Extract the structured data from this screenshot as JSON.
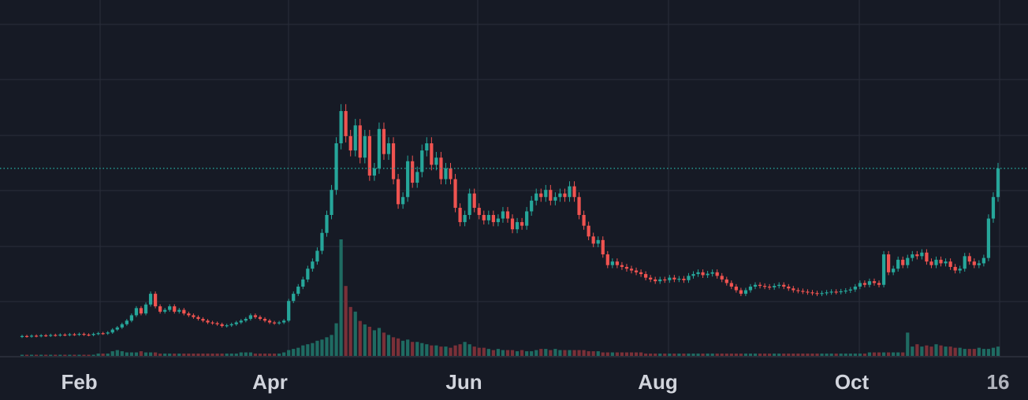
{
  "chart_data": {
    "type": "candlestick",
    "x_axis": {
      "type": "date",
      "tick_labels": [
        {
          "label": "Feb",
          "date": "2024-02-01",
          "emphasis": "month"
        },
        {
          "label": "Apr",
          "date": "2024-04-01",
          "emphasis": "month"
        },
        {
          "label": "Jun",
          "date": "2024-06-01",
          "emphasis": "month"
        },
        {
          "label": "Aug",
          "date": "2024-08-01",
          "emphasis": "month"
        },
        {
          "label": "Oct",
          "date": "2024-10-01",
          "emphasis": "month"
        },
        {
          "label": "16",
          "date": "2024-11-16",
          "emphasis": "day"
        }
      ]
    },
    "y_axis": {
      "visible": false,
      "range": [
        0,
        10
      ]
    },
    "current_price_line": {
      "value": 5.3,
      "style": "dotted"
    },
    "grid": true,
    "volume_panel": true,
    "price_candles": [
      [
        0.6,
        0.62
      ],
      [
        0.62,
        0.61
      ],
      [
        0.61,
        0.63
      ],
      [
        0.63,
        0.62
      ],
      [
        0.62,
        0.64
      ],
      [
        0.64,
        0.63
      ],
      [
        0.63,
        0.65
      ],
      [
        0.65,
        0.64
      ],
      [
        0.64,
        0.66
      ],
      [
        0.66,
        0.65
      ],
      [
        0.65,
        0.67
      ],
      [
        0.67,
        0.66
      ],
      [
        0.66,
        0.68
      ],
      [
        0.68,
        0.66
      ],
      [
        0.66,
        0.65
      ],
      [
        0.65,
        0.68
      ],
      [
        0.68,
        0.7
      ],
      [
        0.7,
        0.69
      ],
      [
        0.69,
        0.72
      ],
      [
        0.72,
        0.8
      ],
      [
        0.8,
        0.86
      ],
      [
        0.86,
        0.95
      ],
      [
        0.95,
        1.05
      ],
      [
        1.05,
        1.2
      ],
      [
        1.2,
        1.4
      ],
      [
        1.4,
        1.25
      ],
      [
        1.25,
        1.5
      ],
      [
        1.5,
        1.8
      ],
      [
        1.8,
        1.45
      ],
      [
        1.45,
        1.3
      ],
      [
        1.3,
        1.35
      ],
      [
        1.35,
        1.45
      ],
      [
        1.45,
        1.3
      ],
      [
        1.3,
        1.35
      ],
      [
        1.35,
        1.25
      ],
      [
        1.25,
        1.2
      ],
      [
        1.2,
        1.15
      ],
      [
        1.15,
        1.1
      ],
      [
        1.1,
        1.05
      ],
      [
        1.05,
        1.0
      ],
      [
        1.0,
        0.98
      ],
      [
        0.98,
        0.95
      ],
      [
        0.95,
        0.9
      ],
      [
        0.9,
        0.92
      ],
      [
        0.92,
        0.95
      ],
      [
        0.95,
        1.0
      ],
      [
        1.0,
        1.05
      ],
      [
        1.05,
        1.1
      ],
      [
        1.1,
        1.2
      ],
      [
        1.2,
        1.15
      ],
      [
        1.15,
        1.1
      ],
      [
        1.1,
        1.05
      ],
      [
        1.05,
        1.0
      ],
      [
        1.0,
        0.98
      ],
      [
        0.98,
        1.0
      ],
      [
        1.0,
        1.05
      ],
      [
        1.05,
        1.6
      ],
      [
        1.6,
        1.8
      ],
      [
        1.8,
        2.0
      ],
      [
        2.0,
        2.2
      ],
      [
        2.2,
        2.5
      ],
      [
        2.5,
        2.7
      ],
      [
        2.7,
        3.0
      ],
      [
        3.0,
        3.5
      ],
      [
        3.5,
        4.0
      ],
      [
        4.0,
        4.7
      ],
      [
        4.7,
        6.0
      ],
      [
        6.0,
        6.9
      ],
      [
        6.9,
        6.2
      ],
      [
        6.2,
        5.8
      ],
      [
        5.8,
        6.5
      ],
      [
        6.5,
        5.6
      ],
      [
        5.6,
        6.2
      ],
      [
        6.2,
        5.1
      ],
      [
        5.1,
        5.3
      ],
      [
        5.3,
        6.4
      ],
      [
        6.4,
        5.7
      ],
      [
        5.7,
        6.0
      ],
      [
        6.0,
        5.0
      ],
      [
        5.0,
        4.3
      ],
      [
        4.3,
        4.5
      ],
      [
        4.5,
        5.5
      ],
      [
        5.5,
        4.9
      ],
      [
        4.9,
        5.2
      ],
      [
        5.2,
        5.8
      ],
      [
        5.8,
        6.0
      ],
      [
        6.0,
        5.4
      ],
      [
        5.4,
        5.6
      ],
      [
        5.6,
        5.0
      ],
      [
        5.0,
        5.3
      ],
      [
        5.3,
        5.0
      ],
      [
        5.0,
        4.2
      ],
      [
        4.2,
        3.8
      ],
      [
        3.8,
        4.0
      ],
      [
        4.0,
        4.6
      ],
      [
        4.6,
        4.2
      ],
      [
        4.2,
        4.0
      ],
      [
        4.0,
        3.85
      ],
      [
        3.85,
        4.0
      ],
      [
        4.0,
        3.8
      ],
      [
        3.8,
        3.9
      ],
      [
        3.9,
        4.1
      ],
      [
        4.1,
        3.9
      ],
      [
        3.9,
        3.6
      ],
      [
        3.6,
        3.8
      ],
      [
        3.8,
        3.7
      ],
      [
        3.7,
        4.1
      ],
      [
        4.1,
        4.4
      ],
      [
        4.4,
        4.6
      ],
      [
        4.6,
        4.5
      ],
      [
        4.5,
        4.7
      ],
      [
        4.7,
        4.4
      ],
      [
        4.4,
        4.5
      ],
      [
        4.5,
        4.6
      ],
      [
        4.6,
        4.5
      ],
      [
        4.5,
        4.8
      ],
      [
        4.8,
        4.5
      ],
      [
        4.5,
        4.0
      ],
      [
        4.0,
        3.7
      ],
      [
        3.7,
        3.4
      ],
      [
        3.4,
        3.2
      ],
      [
        3.2,
        3.3
      ],
      [
        3.3,
        2.9
      ],
      [
        2.9,
        2.6
      ],
      [
        2.6,
        2.7
      ],
      [
        2.7,
        2.6
      ],
      [
        2.6,
        2.55
      ],
      [
        2.55,
        2.5
      ],
      [
        2.5,
        2.45
      ],
      [
        2.45,
        2.4
      ],
      [
        2.4,
        2.35
      ],
      [
        2.35,
        2.25
      ],
      [
        2.25,
        2.2
      ],
      [
        2.2,
        2.15
      ],
      [
        2.15,
        2.2
      ],
      [
        2.2,
        2.18
      ],
      [
        2.18,
        2.25
      ],
      [
        2.25,
        2.2
      ],
      [
        2.2,
        2.22
      ],
      [
        2.22,
        2.18
      ],
      [
        2.18,
        2.3
      ],
      [
        2.3,
        2.35
      ],
      [
        2.35,
        2.4
      ],
      [
        2.4,
        2.32
      ],
      [
        2.32,
        2.36
      ],
      [
        2.36,
        2.4
      ],
      [
        2.4,
        2.3
      ],
      [
        2.3,
        2.2
      ],
      [
        2.2,
        2.1
      ],
      [
        2.1,
        2.0
      ],
      [
        2.0,
        1.9
      ],
      [
        1.9,
        1.8
      ],
      [
        1.8,
        1.9
      ],
      [
        1.9,
        2.0
      ],
      [
        2.0,
        2.05
      ],
      [
        2.05,
        2.02
      ],
      [
        2.02,
        2.0
      ],
      [
        2.0,
        1.98
      ],
      [
        1.98,
        2.02
      ],
      [
        2.02,
        2.05
      ],
      [
        2.05,
        2.0
      ],
      [
        2.0,
        1.95
      ],
      [
        1.95,
        1.9
      ],
      [
        1.9,
        1.88
      ],
      [
        1.88,
        1.86
      ],
      [
        1.86,
        1.84
      ],
      [
        1.84,
        1.82
      ],
      [
        1.82,
        1.8
      ],
      [
        1.8,
        1.82
      ],
      [
        1.82,
        1.84
      ],
      [
        1.84,
        1.86
      ],
      [
        1.86,
        1.85
      ],
      [
        1.85,
        1.87
      ],
      [
        1.87,
        1.89
      ],
      [
        1.89,
        1.92
      ],
      [
        1.92,
        2.0
      ],
      [
        2.0,
        2.1
      ],
      [
        2.1,
        2.05
      ],
      [
        2.05,
        2.15
      ],
      [
        2.15,
        2.1
      ],
      [
        2.1,
        2.05
      ],
      [
        2.05,
        2.9
      ],
      [
        2.9,
        2.4
      ],
      [
        2.4,
        2.5
      ],
      [
        2.5,
        2.75
      ],
      [
        2.75,
        2.6
      ],
      [
        2.6,
        2.8
      ],
      [
        2.8,
        2.9
      ],
      [
        2.9,
        2.85
      ],
      [
        2.85,
        2.95
      ],
      [
        2.95,
        2.7
      ],
      [
        2.7,
        2.6
      ],
      [
        2.6,
        2.75
      ],
      [
        2.75,
        2.65
      ],
      [
        2.65,
        2.7
      ],
      [
        2.7,
        2.55
      ],
      [
        2.55,
        2.45
      ],
      [
        2.45,
        2.5
      ],
      [
        2.5,
        2.85
      ],
      [
        2.85,
        2.7
      ],
      [
        2.7,
        2.6
      ],
      [
        2.6,
        2.65
      ],
      [
        2.65,
        2.8
      ],
      [
        2.8,
        3.9
      ],
      [
        3.9,
        4.5
      ],
      [
        4.5,
        5.3
      ]
    ],
    "volumes": [
      1,
      1,
      1,
      1,
      1,
      1,
      1,
      1,
      1,
      1,
      1,
      1,
      1,
      1,
      1,
      1,
      2,
      2,
      2,
      4,
      5,
      4,
      3,
      3,
      3,
      4,
      3,
      3,
      3,
      2,
      2,
      2,
      2,
      2,
      2,
      2,
      2,
      2,
      2,
      2,
      2,
      2,
      2,
      2,
      2,
      2,
      3,
      3,
      3,
      2,
      2,
      2,
      2,
      2,
      2,
      3,
      5,
      6,
      7,
      9,
      10,
      11,
      13,
      14,
      16,
      18,
      28,
      100,
      60,
      42,
      38,
      30,
      27,
      25,
      22,
      24,
      20,
      18,
      16,
      15,
      13,
      14,
      12,
      12,
      11,
      10,
      9,
      9,
      8,
      8,
      7,
      9,
      10,
      12,
      10,
      8,
      7,
      7,
      6,
      5,
      6,
      5,
      5,
      5,
      4,
      5,
      4,
      4,
      5,
      6,
      6,
      5,
      6,
      5,
      5,
      5,
      5,
      5,
      5,
      4,
      4,
      4,
      3,
      3,
      3,
      3,
      3,
      3,
      3,
      3,
      3,
      2,
      2,
      2,
      2,
      2,
      2,
      2,
      2,
      2,
      2,
      2,
      2,
      2,
      2,
      2,
      2,
      2,
      2,
      2,
      2,
      2,
      2,
      2,
      2,
      2,
      2,
      2,
      2,
      2,
      2,
      2,
      2,
      2,
      2,
      2,
      2,
      2,
      2,
      2,
      2,
      2,
      2,
      2,
      2,
      2,
      2,
      2,
      3,
      3,
      3,
      3,
      3,
      3,
      3,
      3,
      20,
      8,
      10,
      8,
      9,
      8,
      10,
      9,
      8,
      8,
      7,
      7,
      6,
      6,
      6,
      7,
      6,
      6,
      7,
      8,
      9,
      22,
      30,
      35
    ]
  },
  "colors": {
    "background": "#161a25",
    "grid": "#2a2e3a",
    "up": "#26a69a",
    "down": "#ef5350",
    "up_volume": "#1f6b62",
    "down_volume": "#7a3038",
    "price_line": "#26a69a",
    "axis_text": "#b2b5be",
    "axis_text_bold": "#d1d4dc"
  }
}
